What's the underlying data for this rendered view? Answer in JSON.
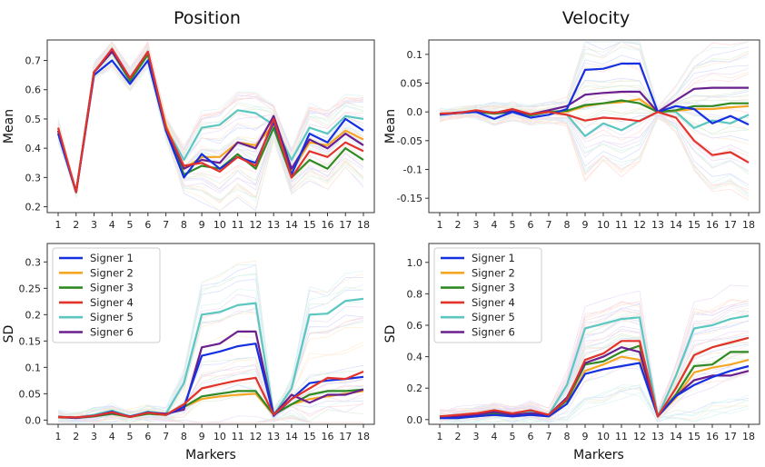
{
  "figure": {
    "col_titles": [
      "Position",
      "Velocity"
    ],
    "shared_xlabel": "Markers"
  },
  "colors": {
    "Signer 1": "#1530e0",
    "Signer 2": "#f5a623",
    "Signer 3": "#2f8a23",
    "Signer 4": "#e2332a",
    "Signer 5": "#5cc7c0",
    "Signer 6": "#6a1f8f"
  },
  "chart_data": [
    {
      "id": "position-mean",
      "type": "line",
      "title": "Position",
      "xlabel": "",
      "ylabel": "Mean",
      "x": [
        1,
        2,
        3,
        4,
        5,
        6,
        7,
        8,
        9,
        10,
        11,
        12,
        13,
        14,
        15,
        16,
        17,
        18
      ],
      "ylim": [
        0.18,
        0.77
      ],
      "yticks": [
        0.2,
        0.3,
        0.4,
        0.5,
        0.6,
        0.7
      ],
      "grid": false,
      "legend": "none",
      "series": [
        {
          "name": "Signer 1",
          "values": [
            0.45,
            0.25,
            0.65,
            0.7,
            0.62,
            0.7,
            0.46,
            0.3,
            0.38,
            0.33,
            0.37,
            0.35,
            0.49,
            0.31,
            0.45,
            0.42,
            0.5,
            0.46
          ]
        },
        {
          "name": "Signer 2",
          "values": [
            0.46,
            0.25,
            0.66,
            0.73,
            0.64,
            0.72,
            0.48,
            0.33,
            0.37,
            0.37,
            0.42,
            0.41,
            0.48,
            0.32,
            0.42,
            0.41,
            0.46,
            0.43
          ]
        },
        {
          "name": "Signer 3",
          "values": [
            0.46,
            0.25,
            0.66,
            0.73,
            0.63,
            0.72,
            0.47,
            0.31,
            0.34,
            0.33,
            0.38,
            0.33,
            0.47,
            0.3,
            0.36,
            0.33,
            0.4,
            0.36
          ]
        },
        {
          "name": "Signer 4",
          "values": [
            0.47,
            0.25,
            0.66,
            0.74,
            0.64,
            0.73,
            0.47,
            0.34,
            0.35,
            0.32,
            0.37,
            0.34,
            0.5,
            0.3,
            0.39,
            0.37,
            0.42,
            0.39
          ]
        },
        {
          "name": "Signer 5",
          "values": [
            0.46,
            0.25,
            0.66,
            0.73,
            0.64,
            0.72,
            0.47,
            0.36,
            0.47,
            0.48,
            0.53,
            0.52,
            0.48,
            0.36,
            0.47,
            0.45,
            0.51,
            0.5
          ]
        },
        {
          "name": "Signer 6",
          "values": [
            0.46,
            0.25,
            0.66,
            0.73,
            0.64,
            0.73,
            0.47,
            0.33,
            0.36,
            0.35,
            0.42,
            0.4,
            0.51,
            0.33,
            0.43,
            0.4,
            0.45,
            0.41
          ]
        }
      ]
    },
    {
      "id": "velocity-mean",
      "type": "line",
      "title": "Velocity",
      "xlabel": "",
      "ylabel": "Mean",
      "x": [
        1,
        2,
        3,
        4,
        5,
        6,
        7,
        8,
        9,
        10,
        11,
        12,
        13,
        14,
        15,
        16,
        17,
        18
      ],
      "ylim": [
        -0.175,
        0.125
      ],
      "yticks": [
        -0.15,
        -0.1,
        -0.05,
        0.0,
        0.05,
        0.1
      ],
      "yticklabels": [
        "-0.15",
        "-0.1",
        "-0.05",
        "0.0",
        "0.05",
        "0.1"
      ],
      "grid": false,
      "legend": "none",
      "series": [
        {
          "name": "Signer 1",
          "values": [
            -0.005,
            -0.002,
            0.0,
            -0.012,
            0.0,
            -0.01,
            -0.005,
            0.005,
            0.073,
            0.075,
            0.084,
            0.084,
            0.0,
            0.01,
            0.005,
            -0.02,
            -0.007,
            -0.022
          ]
        },
        {
          "name": "Signer 2",
          "values": [
            -0.003,
            -0.002,
            0.001,
            -0.002,
            0.001,
            -0.005,
            0.0,
            0.0,
            0.01,
            0.015,
            0.017,
            0.022,
            0.0,
            0.002,
            0.005,
            0.005,
            0.008,
            0.01
          ]
        },
        {
          "name": "Signer 3",
          "values": [
            -0.004,
            -0.002,
            0.0,
            -0.003,
            0.0,
            -0.006,
            0.0,
            0.002,
            0.012,
            0.015,
            0.02,
            0.015,
            0.0,
            0.003,
            0.01,
            0.01,
            0.015,
            0.015
          ]
        },
        {
          "name": "Signer 4",
          "values": [
            -0.003,
            -0.002,
            0.003,
            -0.002,
            0.005,
            -0.004,
            0.0,
            -0.005,
            -0.015,
            -0.01,
            -0.012,
            -0.016,
            0.0,
            -0.01,
            -0.05,
            -0.075,
            -0.07,
            -0.088
          ]
        },
        {
          "name": "Signer 5",
          "values": [
            -0.004,
            -0.002,
            0.0,
            -0.002,
            0.0,
            -0.005,
            0.0,
            -0.005,
            -0.042,
            -0.02,
            -0.032,
            -0.015,
            0.0,
            0.0,
            -0.028,
            -0.015,
            -0.02,
            -0.005
          ]
        },
        {
          "name": "Signer 6",
          "values": [
            -0.004,
            -0.001,
            0.001,
            -0.001,
            0.001,
            -0.004,
            0.003,
            0.01,
            0.03,
            0.033,
            0.035,
            0.035,
            0.0,
            0.02,
            0.04,
            0.042,
            0.042,
            0.042
          ]
        }
      ]
    },
    {
      "id": "position-sd",
      "type": "line",
      "title": "",
      "xlabel": "Markers",
      "ylabel": "SD",
      "x": [
        1,
        2,
        3,
        4,
        5,
        6,
        7,
        8,
        9,
        10,
        11,
        12,
        13,
        14,
        15,
        16,
        17,
        18
      ],
      "ylim": [
        -0.008,
        0.335
      ],
      "yticks": [
        0.0,
        0.05,
        0.1,
        0.15,
        0.2,
        0.25,
        0.3
      ],
      "yticklabels": [
        "0.0",
        "0.05",
        "0.1",
        "0.15",
        "0.2",
        "0.25",
        "0.3"
      ],
      "grid": false,
      "legend": "upper-left",
      "series": [
        {
          "name": "Signer 1",
          "values": [
            0.006,
            0.004,
            0.008,
            0.016,
            0.006,
            0.015,
            0.01,
            0.025,
            0.122,
            0.13,
            0.14,
            0.145,
            0.008,
            0.04,
            0.07,
            0.075,
            0.078,
            0.082
          ]
        },
        {
          "name": "Signer 2",
          "values": [
            0.005,
            0.004,
            0.007,
            0.012,
            0.006,
            0.012,
            0.01,
            0.025,
            0.04,
            0.045,
            0.048,
            0.05,
            0.01,
            0.03,
            0.04,
            0.045,
            0.05,
            0.055
          ]
        },
        {
          "name": "Signer 3",
          "values": [
            0.006,
            0.004,
            0.007,
            0.012,
            0.006,
            0.012,
            0.01,
            0.025,
            0.045,
            0.05,
            0.055,
            0.055,
            0.01,
            0.03,
            0.048,
            0.055,
            0.055,
            0.058
          ]
        },
        {
          "name": "Signer 4",
          "values": [
            0.006,
            0.005,
            0.008,
            0.015,
            0.006,
            0.014,
            0.01,
            0.03,
            0.06,
            0.068,
            0.075,
            0.08,
            0.01,
            0.04,
            0.06,
            0.08,
            0.078,
            0.092
          ]
        },
        {
          "name": "Signer 5",
          "values": [
            0.006,
            0.005,
            0.01,
            0.018,
            0.007,
            0.016,
            0.012,
            0.07,
            0.2,
            0.205,
            0.218,
            0.222,
            0.01,
            0.06,
            0.2,
            0.202,
            0.226,
            0.23
          ]
        },
        {
          "name": "Signer 6",
          "values": [
            0.006,
            0.005,
            0.008,
            0.014,
            0.007,
            0.014,
            0.012,
            0.02,
            0.138,
            0.145,
            0.168,
            0.168,
            0.01,
            0.048,
            0.033,
            0.048,
            0.048,
            0.058
          ]
        }
      ]
    },
    {
      "id": "velocity-sd",
      "type": "line",
      "title": "",
      "xlabel": "Markers",
      "ylabel": "SD",
      "x": [
        1,
        2,
        3,
        4,
        5,
        6,
        7,
        8,
        9,
        10,
        11,
        12,
        13,
        14,
        15,
        16,
        17,
        18
      ],
      "ylim": [
        -0.03,
        1.12
      ],
      "yticks": [
        0.0,
        0.2,
        0.4,
        0.6,
        0.8,
        1.0
      ],
      "yticklabels": [
        "0.0",
        "0.2",
        "0.4",
        "0.6",
        "0.8",
        "1.0"
      ],
      "grid": false,
      "legend": "upper-left",
      "series": [
        {
          "name": "Signer 1",
          "values": [
            0.01,
            0.01,
            0.02,
            0.03,
            0.02,
            0.03,
            0.02,
            0.1,
            0.29,
            0.32,
            0.34,
            0.36,
            0.02,
            0.15,
            0.22,
            0.27,
            0.31,
            0.34
          ]
        },
        {
          "name": "Signer 2",
          "values": [
            0.01,
            0.01,
            0.02,
            0.03,
            0.02,
            0.03,
            0.02,
            0.1,
            0.31,
            0.35,
            0.4,
            0.38,
            0.02,
            0.14,
            0.3,
            0.33,
            0.35,
            0.38
          ]
        },
        {
          "name": "Signer 3",
          "values": [
            0.02,
            0.02,
            0.03,
            0.04,
            0.03,
            0.04,
            0.03,
            0.12,
            0.35,
            0.37,
            0.43,
            0.47,
            0.02,
            0.16,
            0.34,
            0.35,
            0.43,
            0.43
          ]
        },
        {
          "name": "Signer 4",
          "values": [
            0.02,
            0.03,
            0.04,
            0.06,
            0.04,
            0.06,
            0.03,
            0.13,
            0.38,
            0.42,
            0.5,
            0.5,
            0.02,
            0.2,
            0.41,
            0.46,
            0.49,
            0.52
          ]
        },
        {
          "name": "Signer 5",
          "values": [
            0.02,
            0.02,
            0.03,
            0.05,
            0.03,
            0.05,
            0.03,
            0.22,
            0.58,
            0.61,
            0.64,
            0.65,
            0.02,
            0.28,
            0.58,
            0.6,
            0.64,
            0.66
          ]
        },
        {
          "name": "Signer 6",
          "values": [
            0.02,
            0.02,
            0.03,
            0.05,
            0.03,
            0.04,
            0.03,
            0.14,
            0.36,
            0.4,
            0.46,
            0.43,
            0.02,
            0.15,
            0.25,
            0.28,
            0.28,
            0.31
          ]
        }
      ]
    }
  ]
}
